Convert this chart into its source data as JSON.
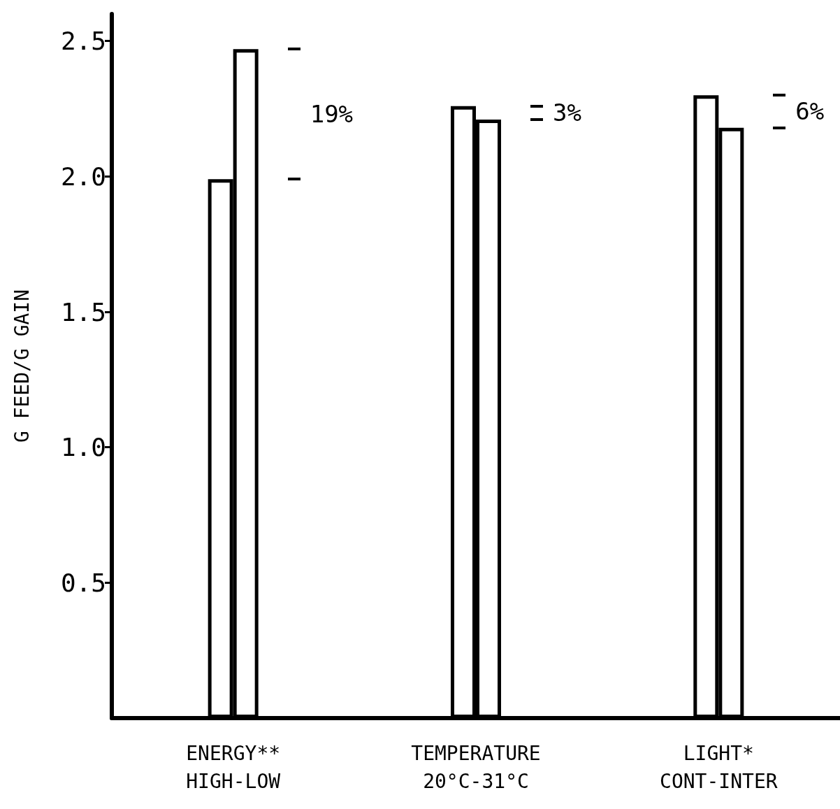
{
  "chart_data": {
    "type": "bar",
    "ylabel": "G FEED/G GAIN",
    "categories": [
      "ENERGY**\nHIGH-LOW",
      "TEMPERATURE\n20°C-31°C",
      "LIGHT*\nCONT-INTER"
    ],
    "series": [
      {
        "color": "#ffffff",
        "values": [
          1.99,
          2.26,
          2.3
        ]
      },
      {
        "color": "#ffffff",
        "values": [
          2.47,
          2.21,
          2.18
        ]
      }
    ],
    "ylim": [
      0,
      2.6
    ],
    "yticks": [
      {
        "value": 0.5,
        "label": "0.5"
      },
      {
        "value": 1,
        "label": "1.0"
      },
      {
        "value": 1.5,
        "label": "1.5"
      },
      {
        "value": 2,
        "label": "2.0"
      },
      {
        "value": 2.5,
        "label": "2.5"
      }
    ],
    "annotations": [
      "19%",
      "3%",
      "6%"
    ],
    "grid": false
  }
}
